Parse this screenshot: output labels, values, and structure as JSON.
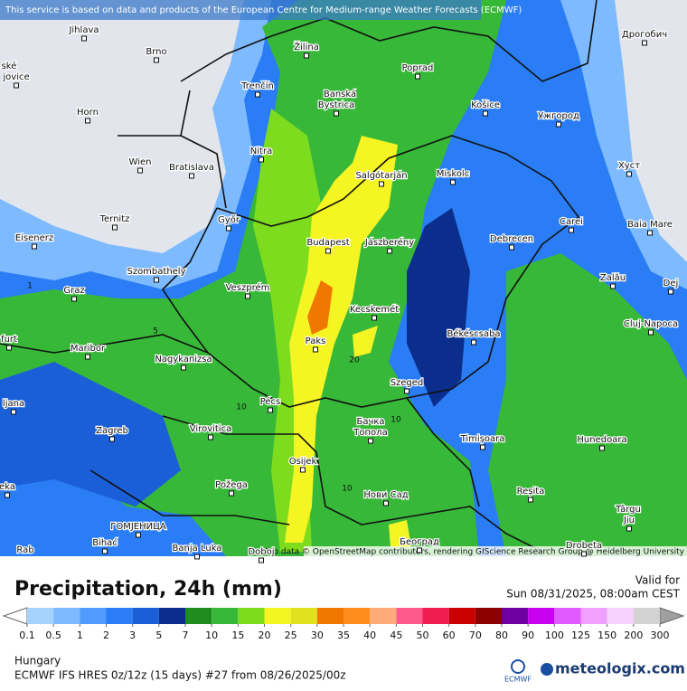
{
  "attribution_top": "This service is based on data and products of the European Centre for Medium-range Weather Forecasts (ECMWF)",
  "attribution_map": "Map data © OpenStreetMap contributors, rendering GIScience Research Group @ Heidelberg University",
  "cities": [
    "Jihlava",
    "Brno",
    "ské",
    "jovice",
    "Horn",
    "Wien",
    "Bratislava",
    "Ternitz",
    "Eisenerz",
    "Győr",
    "Szombathely",
    "Graz",
    "Veszprém",
    "furt",
    "Maribor",
    "Nagykanizsa",
    "Pécs",
    "ljana",
    "Zagreb",
    "Virovitica",
    "Požega",
    "eka",
    "Osijek",
    "Bihać",
    "ГОМЈЕНИЦА",
    "Banja Luka",
    "Rab",
    "Doboj",
    "Žilina",
    "Trenčín",
    "Nitra",
    "Banská",
    "Bystrica",
    "Poprad",
    "Košice",
    "Salgótarján",
    "Miskolc",
    "Budapest",
    "Jászberény",
    "Kecskemét",
    "Paks",
    "Szeged",
    "Békéscsaba",
    "Debrecen",
    "Бачка",
    "Топола",
    "Нови Сад",
    "Београд",
    "Timișoara",
    "Reșita",
    "Hunedoara",
    "Târgu",
    "Jiu",
    "Drobeta",
    "Cluj-Napoca",
    "Zalău",
    "Baia Mare",
    "Carei",
    "Хуст",
    "Ужгород",
    "Дрогобич",
    "Dej"
  ],
  "contour_labels": [
    "1",
    "5",
    "10",
    "20",
    "10",
    "10"
  ],
  "title": "Precipitation, 24h (mm)",
  "valid_label": "Valid for",
  "valid_time": "Sun 08/31/2025, 08:00am CEST",
  "legend": {
    "levels": [
      0.1,
      0.5,
      1,
      2,
      3,
      5,
      7,
      10,
      15,
      20,
      25,
      30,
      35,
      40,
      45,
      50,
      60,
      70,
      80,
      90,
      100,
      125,
      150,
      200,
      300
    ],
    "colors": [
      "#a5d2ff",
      "#7dbaff",
      "#4f9bff",
      "#2a7df5",
      "#1a5fd8",
      "#0b2e8c",
      "#1f8c1f",
      "#38b838",
      "#7ddc1e",
      "#f5f523",
      "#e1e11e",
      "#f07800",
      "#ff8c1e",
      "#ffaa78",
      "#ff5a8c",
      "#f01e50",
      "#c80000",
      "#8c0000",
      "#6e00a0",
      "#c800f0",
      "#e15aff",
      "#f0a0ff",
      "#f5d2ff",
      "#d2d2d2"
    ],
    "below_color": "#ffffff",
    "above_color": "#a0a0a0"
  },
  "region": "Hungary",
  "model_run": "ECMWF IFS HRES 0z/12z (15 days) #27 from  08/26/2025/00z",
  "ecmwf_logo": "ECMWF",
  "brand": "meteologix.com"
}
